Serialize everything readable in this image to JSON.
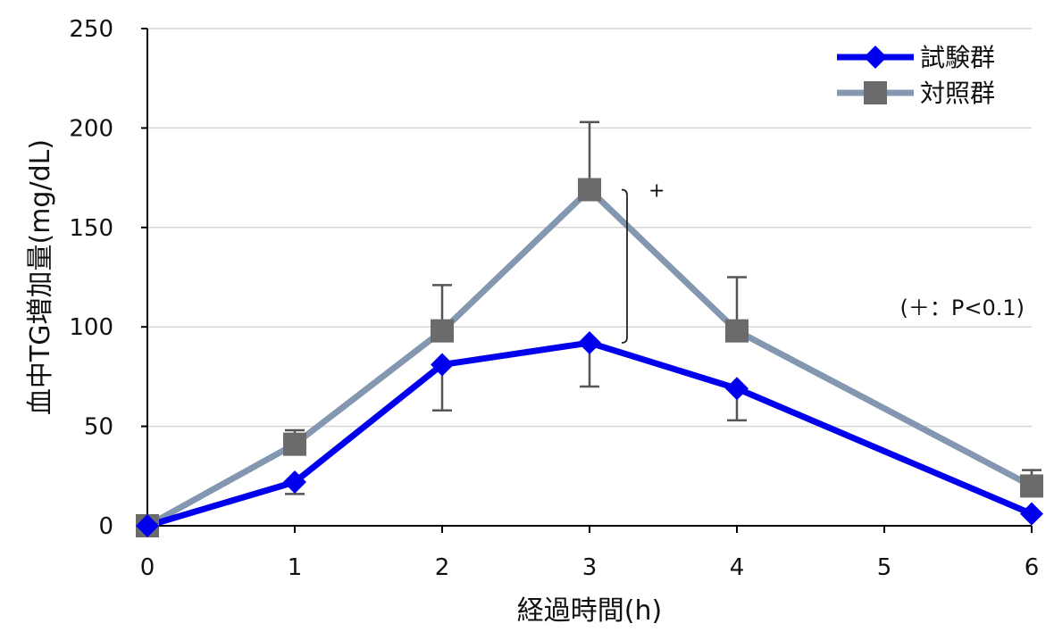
{
  "chart_data": {
    "type": "line",
    "title": "",
    "xlabel": "経過時間(h)",
    "ylabel": "血中TG増加量(mg/dL)",
    "xlim": [
      0,
      6
    ],
    "ylim": [
      0,
      250
    ],
    "x_ticks": [
      0,
      1,
      2,
      3,
      4,
      5,
      6
    ],
    "y_ticks": [
      0,
      50,
      100,
      150,
      200,
      250
    ],
    "grid": "horizontal",
    "legend_position": "top-right",
    "series": [
      {
        "name": "試験群",
        "color": "#0000ee",
        "marker": "diamond",
        "x": [
          0,
          1,
          2,
          3,
          4,
          6
        ],
        "values": [
          0,
          22,
          81,
          92,
          69,
          6
        ],
        "err_upper": [
          null,
          null,
          null,
          null,
          null,
          null
        ],
        "err_lower": [
          null,
          16,
          58,
          70,
          53,
          null
        ]
      },
      {
        "name": "対照群",
        "color": "#8497b0",
        "marker_color": "#6b6b6b",
        "marker": "square",
        "x": [
          0,
          1,
          2,
          3,
          4,
          6
        ],
        "values": [
          0,
          41,
          98,
          169,
          98,
          20
        ],
        "err_upper": [
          null,
          48,
          121,
          203,
          125,
          28
        ],
        "err_lower": [
          null,
          null,
          null,
          null,
          null,
          null
        ]
      }
    ],
    "annotations": {
      "significance_mark": "+",
      "significance_x": 3,
      "note": "(＋：P<0.1)"
    }
  }
}
